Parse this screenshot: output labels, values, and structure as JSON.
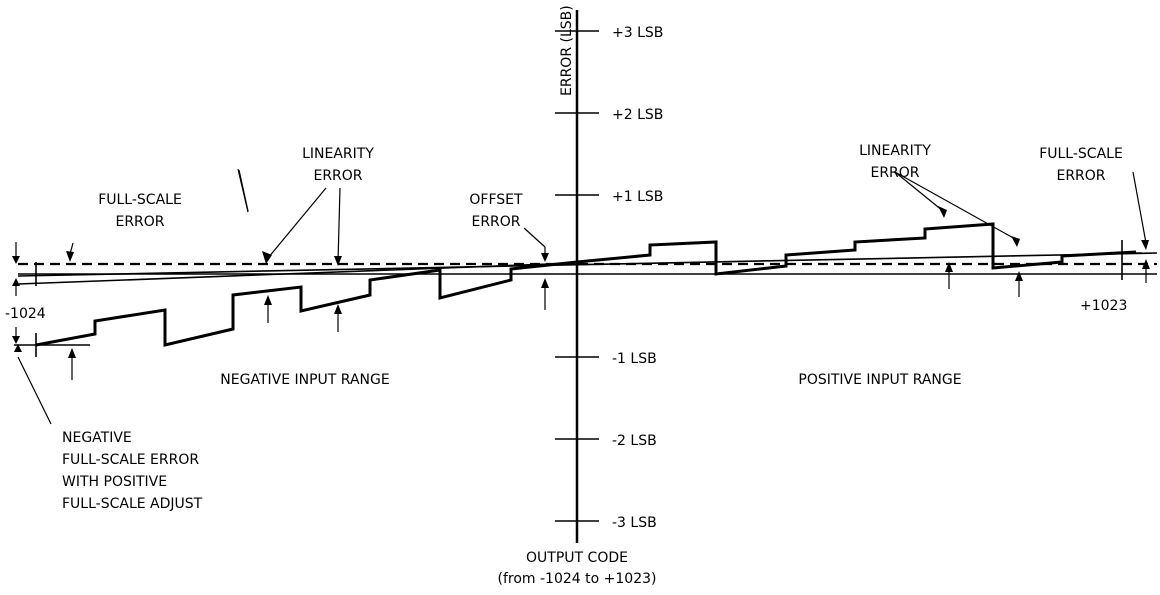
{
  "axes": {
    "y_title": "ERROR (LSB)",
    "x_title_line1": "OUTPUT CODE",
    "x_title_line2": "(from -1024 to +1023)",
    "x_min_label": "-1024",
    "x_max_label": "+1023",
    "ticks": [
      "+3 LSB",
      "+2 LSB",
      "+1 LSB",
      "-1 LSB",
      "-2 LSB",
      "-3 LSB"
    ]
  },
  "regions": {
    "negative": "NEGATIVE INPUT RANGE",
    "positive": "POSITIVE INPUT RANGE"
  },
  "labels": {
    "linearity_left": [
      "LINEARITY",
      "ERROR"
    ],
    "linearity_right": [
      "LINEARITY",
      "ERROR"
    ],
    "full_scale_left": [
      "FULL-SCALE",
      "ERROR"
    ],
    "full_scale_right": [
      "FULL-SCALE",
      "ERROR"
    ],
    "offset": [
      "OFFSET",
      "ERROR"
    ],
    "neg_full_scale": [
      "NEGATIVE",
      "FULL-SCALE ERROR",
      "WITH POSITIVE",
      "FULL-SCALE ADJUST"
    ]
  }
}
